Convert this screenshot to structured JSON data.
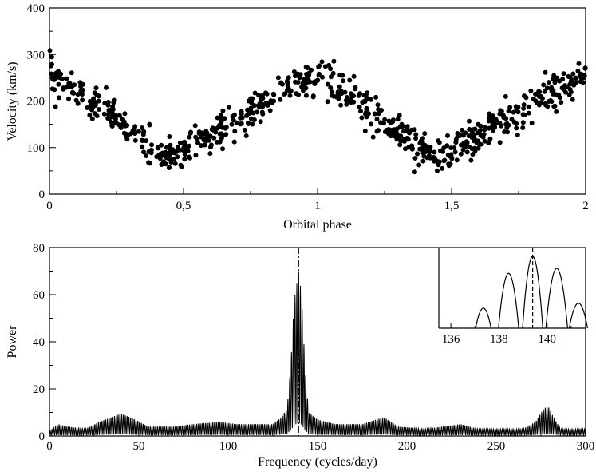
{
  "chart_data": [
    {
      "type": "scatter",
      "xlabel": "Orbital phase",
      "ylabel": "Velocity (km/s)",
      "xlim": [
        0,
        2
      ],
      "ylim": [
        0,
        400
      ],
      "xticks": [
        "0",
        "0,5",
        "1",
        "1,5",
        "2"
      ],
      "yticks": [
        "0",
        "100",
        "200",
        "300",
        "400"
      ],
      "grid": false,
      "model": {
        "description_points": [
          [
            0.0,
            260
          ],
          [
            0.45,
            75
          ],
          [
            1.0,
            260
          ],
          [
            1.45,
            75
          ],
          [
            2.0,
            260
          ]
        ],
        "shape": "sawtooth",
        "scatter_kms": 18
      }
    },
    {
      "type": "line",
      "xlabel": "Frequency (cycles/day)",
      "ylabel": "Power",
      "xlim": [
        0,
        300
      ],
      "ylim": [
        0,
        80
      ],
      "xticks": [
        "0",
        "50",
        "100",
        "150",
        "200",
        "250",
        "300"
      ],
      "yticks": [
        "0",
        "20",
        "40",
        "60",
        "80"
      ],
      "grid": false,
      "peak": {
        "frequency": 139.4,
        "power": 70
      },
      "secondary_peak": {
        "frequency": 278.8,
        "power": 13
      },
      "envelope": [
        [
          0,
          2
        ],
        [
          5,
          5
        ],
        [
          10,
          4
        ],
        [
          20,
          3
        ],
        [
          28,
          6
        ],
        [
          40,
          9.5
        ],
        [
          48,
          7
        ],
        [
          55,
          4
        ],
        [
          70,
          4
        ],
        [
          80,
          5
        ],
        [
          95,
          6
        ],
        [
          105,
          5
        ],
        [
          115,
          5
        ],
        [
          125,
          5
        ],
        [
          130,
          8
        ],
        [
          133,
          12
        ],
        [
          135,
          30
        ],
        [
          137,
          58
        ],
        [
          139.4,
          70
        ],
        [
          141,
          60
        ],
        [
          143,
          30
        ],
        [
          145,
          10
        ],
        [
          150,
          7
        ],
        [
          160,
          5
        ],
        [
          175,
          5
        ],
        [
          187,
          8
        ],
        [
          195,
          4
        ],
        [
          210,
          3
        ],
        [
          230,
          5
        ],
        [
          240,
          3
        ],
        [
          255,
          3
        ],
        [
          265,
          3
        ],
        [
          272,
          6
        ],
        [
          276,
          11
        ],
        [
          278.8,
          13
        ],
        [
          282,
          8
        ],
        [
          286,
          3
        ],
        [
          300,
          3
        ]
      ],
      "inset": {
        "xlim": [
          135.5,
          141.6
        ],
        "ylim": [
          0,
          80
        ],
        "xticks": [
          "136",
          "138",
          "140"
        ],
        "dashed_x": 139.4,
        "peaks": [
          {
            "x": 137.35,
            "y": 20,
            "w": 0.32
          },
          {
            "x": 138.4,
            "y": 55,
            "w": 0.42
          },
          {
            "x": 139.4,
            "y": 72,
            "w": 0.42
          },
          {
            "x": 140.4,
            "y": 60,
            "w": 0.45
          },
          {
            "x": 141.3,
            "y": 25,
            "w": 0.38
          }
        ]
      }
    }
  ]
}
